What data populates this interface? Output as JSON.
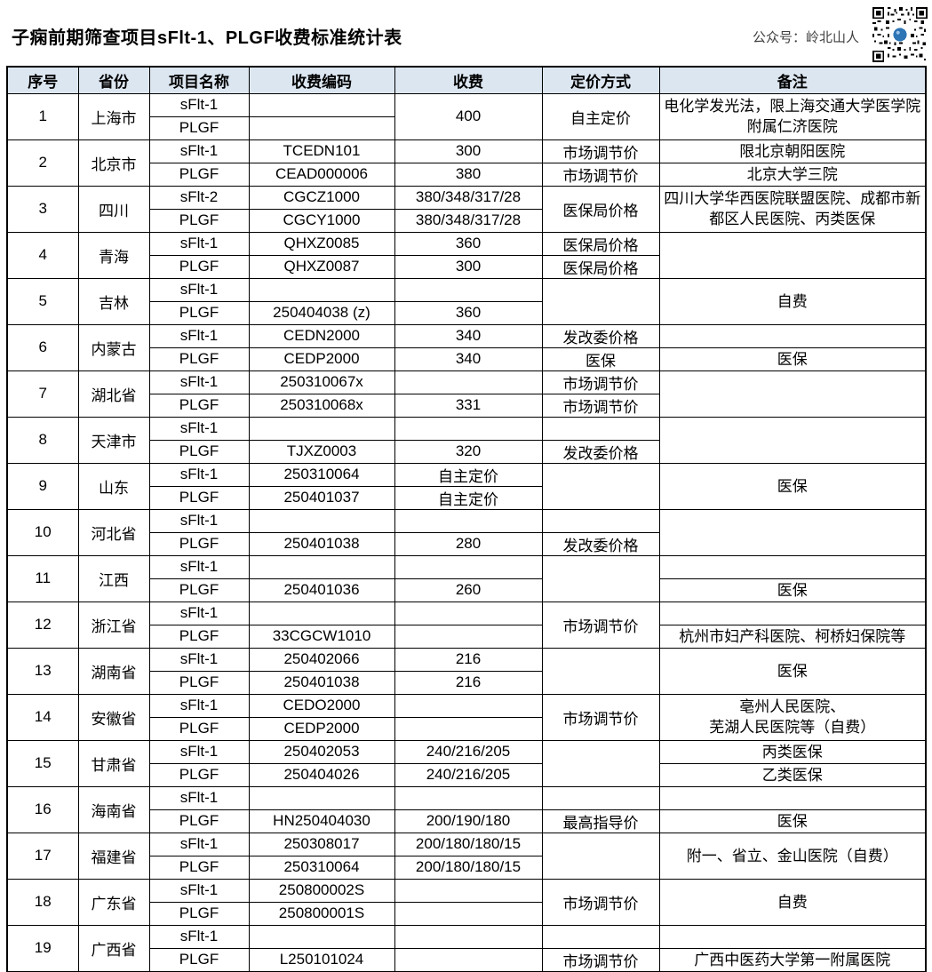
{
  "header": {
    "title": "子痫前期筛查项目sFlt-1、PLGF收费标准统计表",
    "watermark": "公众号：岭北山人"
  },
  "colors": {
    "header_bg": "#dce6f1",
    "border": "#000000",
    "watermark_text": "#3f3f3f",
    "qr_logo": "#2e75b6"
  },
  "icons": {
    "qr": "qr-code"
  },
  "table": {
    "columns": [
      "序号",
      "省份",
      "项目名称",
      "收费编码",
      "收费",
      "定价方式",
      "备注"
    ],
    "rows": [
      {
        "no": "1",
        "province": "上海市",
        "items": [
          "sFlt-1",
          "PLGF"
        ],
        "code": [
          "",
          ""
        ],
        "fee": "400",
        "pricing": "自主定价",
        "remark": "电化学发光法，限上海交通大学医学院附属仁济医院"
      },
      {
        "no": "2",
        "province": "北京市",
        "items": [
          "sFlt-1",
          "PLGF"
        ],
        "code": [
          "TCEDN101",
          "CEAD000006"
        ],
        "fee": [
          "300",
          "380"
        ],
        "pricing": [
          "市场调节价",
          "市场调节价"
        ],
        "remark": [
          "限北京朝阳医院",
          "北京大学三院"
        ]
      },
      {
        "no": "3",
        "province": "四川",
        "items": [
          "sFlt-2",
          "PLGF"
        ],
        "code": [
          "CGCZ1000",
          "CGCY1000"
        ],
        "fee": [
          "380/348/317/28",
          "380/348/317/28"
        ],
        "pricing": "医保局价格",
        "remark": "四川大学华西医院联盟医院、成都市新都区人民医院、丙类医保"
      },
      {
        "no": "4",
        "province": "青海",
        "items": [
          "sFlt-1",
          "PLGF"
        ],
        "code": [
          "QHXZ0085",
          "QHXZ0087"
        ],
        "fee": [
          "360",
          "300"
        ],
        "pricing": [
          "医保局价格",
          "医保局价格"
        ],
        "remark": ""
      },
      {
        "no": "5",
        "province": "吉林",
        "items": [
          "sFlt-1",
          "PLGF"
        ],
        "code": [
          "",
          "250404038 (z)"
        ],
        "fee": [
          "",
          "360"
        ],
        "pricing": "",
        "remark": "自费"
      },
      {
        "no": "6",
        "province": "内蒙古",
        "items": [
          "sFlt-1",
          "PLGF"
        ],
        "code": [
          "CEDN2000",
          "CEDP2000"
        ],
        "fee": [
          "340",
          "340"
        ],
        "pricing": [
          "发改委价格",
          "医保"
        ],
        "remark": [
          "",
          "医保"
        ]
      },
      {
        "no": "7",
        "province": "湖北省",
        "items": [
          "sFlt-1",
          "PLGF"
        ],
        "code": [
          "250310067x",
          "250310068x"
        ],
        "fee": [
          "",
          "331"
        ],
        "pricing": [
          "市场调节价",
          "市场调节价"
        ],
        "remark": ""
      },
      {
        "no": "8",
        "province": "天津市",
        "items": [
          "sFlt-1",
          "PLGF"
        ],
        "code": [
          "",
          "TJXZ0003"
        ],
        "fee": [
          "",
          "320"
        ],
        "pricing": [
          "",
          "发改委价格"
        ],
        "remark": ""
      },
      {
        "no": "9",
        "province": "山东",
        "items": [
          "sFlt-1",
          "PLGF"
        ],
        "code": [
          "250310064",
          "250401037"
        ],
        "fee": [
          "自主定价",
          "自主定价"
        ],
        "pricing": "",
        "remark": "医保"
      },
      {
        "no": "10",
        "province": "河北省",
        "items": [
          "sFlt-1",
          "PLGF"
        ],
        "code": [
          "",
          "250401038"
        ],
        "fee": [
          "",
          "280"
        ],
        "pricing": [
          "",
          "发改委价格"
        ],
        "remark": ""
      },
      {
        "no": "11",
        "province": "江西",
        "items": [
          "sFlt-1",
          "PLGF"
        ],
        "code": [
          "",
          "250401036"
        ],
        "fee": [
          "",
          "260"
        ],
        "pricing": "",
        "remark": [
          "",
          "医保"
        ]
      },
      {
        "no": "12",
        "province": "浙江省",
        "items": [
          "sFlt-1",
          "PLGF"
        ],
        "code": [
          "",
          "33CGCW1010"
        ],
        "fee": [
          "",
          ""
        ],
        "pricing": "市场调节价",
        "remark": [
          "",
          "杭州市妇产科医院、柯桥妇保院等"
        ]
      },
      {
        "no": "13",
        "province": "湖南省",
        "items": [
          "sFlt-1",
          "PLGF"
        ],
        "code": [
          "250402066",
          "250401038"
        ],
        "fee": [
          "216",
          "216"
        ],
        "pricing": "",
        "remark": "医保"
      },
      {
        "no": "14",
        "province": "安徽省",
        "items": [
          "sFlt-1",
          "PLGF"
        ],
        "code": [
          "CEDO2000",
          "CEDP2000"
        ],
        "fee": [
          "",
          ""
        ],
        "pricing": "市场调节价",
        "remark": "亳州人民医院、\n芜湖人民医院等（自费）"
      },
      {
        "no": "15",
        "province": "甘肃省",
        "items": [
          "sFlt-1",
          "PLGF"
        ],
        "code": [
          "250402053",
          "250404026"
        ],
        "fee": [
          "240/216/205",
          "240/216/205"
        ],
        "pricing": "",
        "remark": [
          "丙类医保",
          "乙类医保"
        ]
      },
      {
        "no": "16",
        "province": "海南省",
        "items": [
          "sFlt-1",
          "PLGF"
        ],
        "code": [
          "",
          "HN250404030"
        ],
        "fee": [
          "",
          "200/190/180"
        ],
        "pricing": [
          "",
          "最高指导价"
        ],
        "remark": [
          "",
          "医保"
        ]
      },
      {
        "no": "17",
        "province": "福建省",
        "items": [
          "sFlt-1",
          "PLGF"
        ],
        "code": [
          "250308017",
          "250310064"
        ],
        "fee": [
          "200/180/180/15",
          "200/180/180/15"
        ],
        "pricing": "",
        "remark": "附一、省立、金山医院（自费）"
      },
      {
        "no": "18",
        "province": "广东省",
        "items": [
          "sFlt-1",
          "PLGF"
        ],
        "code": [
          "250800002S",
          "250800001S"
        ],
        "fee": [
          "",
          ""
        ],
        "pricing": "市场调节价",
        "remark": "自费"
      },
      {
        "no": "19",
        "province": "广西省",
        "items": [
          "sFlt-1",
          "PLGF"
        ],
        "code": [
          "",
          "L250101024"
        ],
        "fee": [
          "",
          ""
        ],
        "pricing": [
          "",
          "市场调节价"
        ],
        "remark": [
          "",
          "广西中医药大学第一附属医院"
        ]
      }
    ]
  }
}
